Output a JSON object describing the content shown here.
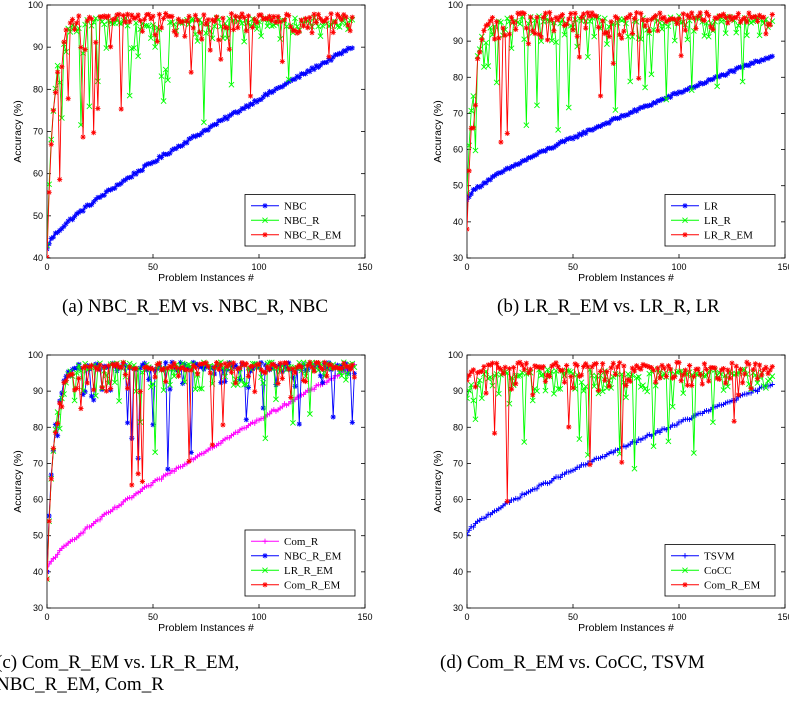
{
  "chart_data": [
    {
      "type": "line",
      "xlabel": "Problem Instances #",
      "ylabel": "Accuracy (%)",
      "xlim": [
        0,
        150
      ],
      "ylim": [
        40,
        100
      ],
      "xticks": [
        0,
        50,
        100,
        150
      ],
      "yticks": [
        40,
        50,
        60,
        70,
        80,
        90,
        100
      ],
      "legend_position": "bottom-right",
      "series": [
        {
          "name": "NBC",
          "color": "#0000ff",
          "marker": "star",
          "trend": "increasing",
          "start": 42,
          "end": 90,
          "x_end": 144
        },
        {
          "name": "NBC_R",
          "color": "#00ff00",
          "marker": "x",
          "trend": "noisy-high",
          "start": 43,
          "end": 97,
          "x_end": 144
        },
        {
          "name": "NBC_R_EM",
          "color": "#ff0000",
          "marker": "star",
          "trend": "noisy-high",
          "start": 40,
          "end": 98,
          "x_end": 144
        }
      ],
      "caption": "(a)  NBC_R_EM vs. NBC_R, NBC"
    },
    {
      "type": "line",
      "xlabel": "Problem Instances #",
      "ylabel": "Accuracy (%)",
      "xlim": [
        0,
        150
      ],
      "ylim": [
        30,
        100
      ],
      "xticks": [
        0,
        50,
        100,
        150
      ],
      "yticks": [
        30,
        40,
        50,
        60,
        70,
        80,
        90,
        100
      ],
      "legend_position": "bottom-right",
      "series": [
        {
          "name": "LR",
          "color": "#0000ff",
          "marker": "star",
          "trend": "increasing",
          "start": 46,
          "end": 86,
          "x_end": 144
        },
        {
          "name": "LR_R",
          "color": "#00ff00",
          "marker": "x",
          "trend": "noisy-high",
          "start": 48,
          "end": 97,
          "x_end": 144
        },
        {
          "name": "LR_R_EM",
          "color": "#ff0000",
          "marker": "star",
          "trend": "noisy-high",
          "start": 38,
          "end": 98,
          "x_end": 144
        }
      ],
      "caption": "(b)  LR_R_EM vs. LR_R, LR"
    },
    {
      "type": "line",
      "xlabel": "Problem Instances #",
      "ylabel": "Accuracy (%)",
      "xlim": [
        0,
        150
      ],
      "ylim": [
        30,
        100
      ],
      "xticks": [
        0,
        50,
        100,
        150
      ],
      "yticks": [
        30,
        40,
        50,
        60,
        70,
        80,
        90,
        100
      ],
      "legend_position": "bottom-right",
      "series": [
        {
          "name": "Com_R",
          "color": "#ff00ff",
          "marker": "plus",
          "trend": "increasing",
          "start": 40,
          "end": 97,
          "x_end": 145
        },
        {
          "name": "NBC_R_EM",
          "color": "#0000ff",
          "marker": "star",
          "trend": "noisy-high",
          "start": 40,
          "end": 98,
          "x_end": 145
        },
        {
          "name": "LR_R_EM",
          "color": "#00ff00",
          "marker": "x",
          "trend": "noisy-high",
          "start": 38,
          "end": 98,
          "x_end": 145
        },
        {
          "name": "Com_R_EM",
          "color": "#ff0000",
          "marker": "star",
          "trend": "noisy-high",
          "start": 38,
          "end": 98,
          "x_end": 145
        }
      ],
      "caption_lines": [
        "(c)  Com_R_EM  vs.  LR_R_EM,",
        "NBC_R_EM, Com_R"
      ]
    },
    {
      "type": "line",
      "xlabel": "Problem Instances #",
      "ylabel": "Accuracy (%)",
      "xlim": [
        0,
        150
      ],
      "ylim": [
        30,
        100
      ],
      "xticks": [
        0,
        50,
        100,
        150
      ],
      "yticks": [
        30,
        40,
        50,
        60,
        70,
        80,
        90,
        100
      ],
      "legend_position": "bottom-right",
      "series": [
        {
          "name": "TSVM",
          "color": "#0000ff",
          "marker": "plus",
          "trend": "increasing",
          "start": 50,
          "end": 92,
          "x_end": 144
        },
        {
          "name": "CoCC",
          "color": "#00ff00",
          "marker": "x",
          "trend": "noisy-high",
          "start": 88,
          "end": 96,
          "x_end": 144
        },
        {
          "name": "Com_R_EM",
          "color": "#ff0000",
          "marker": "star",
          "trend": "noisy-high",
          "start": 93,
          "end": 98,
          "x_end": 144
        }
      ],
      "caption": "(d)  Com_R_EM vs. CoCC, TSVM"
    }
  ]
}
